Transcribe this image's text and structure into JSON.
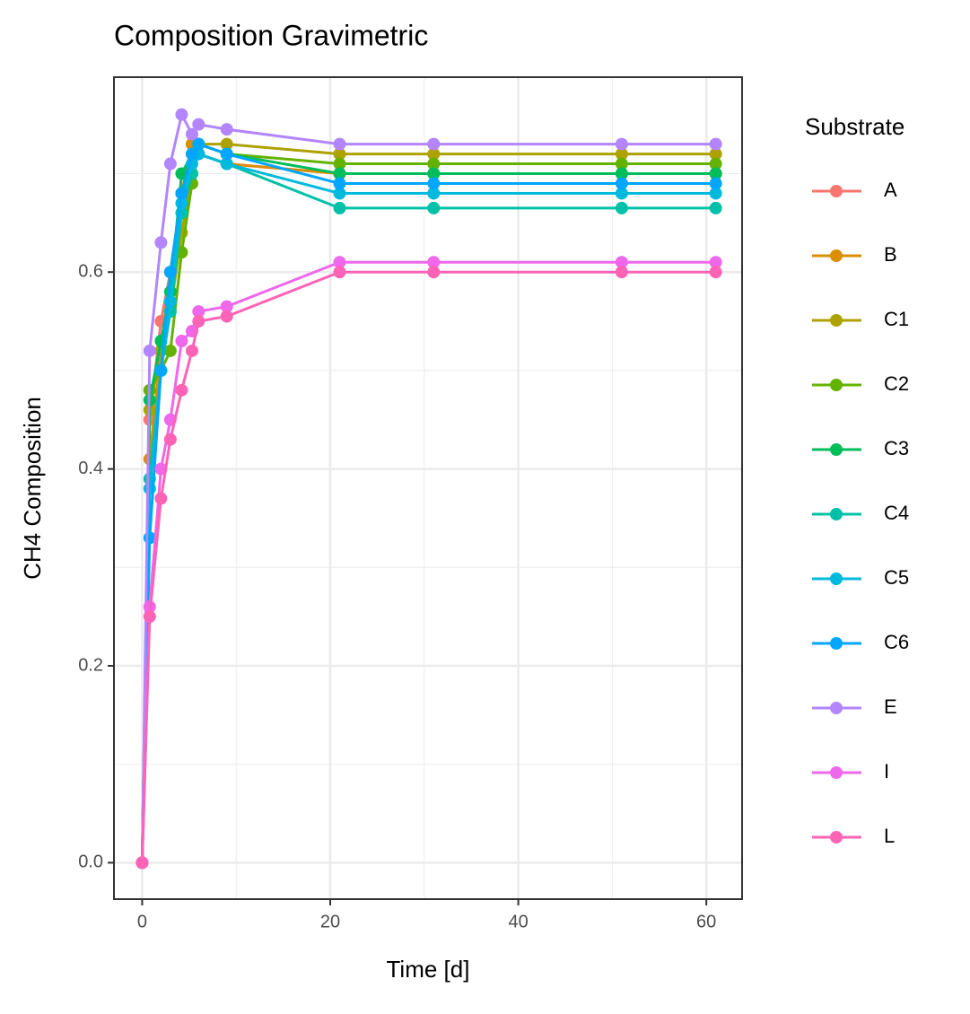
{
  "chart_data": {
    "type": "line",
    "title": "Composition Gravimetric",
    "x_label": "Time [d]",
    "y_label": "CH4 Composition",
    "legend_title": "Substrate",
    "x": [
      0,
      0.8,
      2,
      3,
      4.2,
      5.3,
      6,
      9,
      21,
      31,
      51,
      61
    ],
    "series": [
      {
        "name": "A",
        "color": "#F8766D",
        "values": [
          0,
          0.45,
          0.55,
          0.6,
          0.68,
          0.73,
          0.72,
          0.71,
          0.7,
          0.7,
          0.7,
          0.7
        ]
      },
      {
        "name": "B",
        "color": "#DB8E00",
        "values": [
          0,
          0.41,
          0.52,
          0.6,
          0.68,
          0.73,
          0.72,
          0.71,
          0.7,
          0.7,
          0.7,
          0.7
        ]
      },
      {
        "name": "C1",
        "color": "#AEA200",
        "values": [
          0,
          0.46,
          0.52,
          0.56,
          0.64,
          0.7,
          0.73,
          0.73,
          0.72,
          0.72,
          0.72,
          0.72
        ]
      },
      {
        "name": "C2",
        "color": "#64B200",
        "values": [
          0,
          0.48,
          0.5,
          0.52,
          0.62,
          0.69,
          0.73,
          0.72,
          0.71,
          0.71,
          0.71,
          0.71
        ]
      },
      {
        "name": "C3",
        "color": "#00BD5C",
        "values": [
          0,
          0.47,
          0.53,
          0.58,
          0.7,
          0.72,
          0.73,
          0.72,
          0.7,
          0.7,
          0.7,
          0.7
        ]
      },
      {
        "name": "C4",
        "color": "#00C1A7",
        "values": [
          0,
          0.39,
          0.5,
          0.56,
          0.66,
          0.7,
          0.72,
          0.71,
          0.665,
          0.665,
          0.665,
          0.665
        ]
      },
      {
        "name": "C5",
        "color": "#00BADE",
        "values": [
          0,
          0.38,
          0.5,
          0.57,
          0.67,
          0.71,
          0.72,
          0.71,
          0.68,
          0.68,
          0.68,
          0.68
        ]
      },
      {
        "name": "C6",
        "color": "#00A6FF",
        "values": [
          0,
          0.33,
          0.5,
          0.6,
          0.68,
          0.72,
          0.73,
          0.72,
          0.69,
          0.69,
          0.69,
          0.69
        ]
      },
      {
        "name": "E",
        "color": "#B385FF",
        "values": [
          0,
          0.52,
          0.63,
          0.71,
          0.76,
          0.74,
          0.75,
          0.745,
          0.73,
          0.73,
          0.73,
          0.73
        ]
      },
      {
        "name": "I",
        "color": "#EF67EB",
        "values": [
          0,
          0.26,
          0.4,
          0.45,
          0.53,
          0.54,
          0.56,
          0.565,
          0.61,
          0.61,
          0.61,
          0.61
        ]
      },
      {
        "name": "L",
        "color": "#FF63B6",
        "values": [
          0,
          0.25,
          0.37,
          0.43,
          0.48,
          0.52,
          0.55,
          0.555,
          0.6,
          0.6,
          0.6,
          0.6
        ]
      }
    ],
    "xlim": [
      -3,
      63.8
    ],
    "ylim": [
      -0.037,
      0.798
    ],
    "xticks": [
      0,
      20,
      40,
      60
    ],
    "yticks": [
      {
        "value": 0,
        "label": "0.0"
      },
      0.2,
      0.4,
      0.6
    ],
    "xminor": [
      10,
      30,
      50
    ],
    "yminor": [
      0.1,
      0.3,
      0.5,
      0.7
    ],
    "grid": true
  }
}
